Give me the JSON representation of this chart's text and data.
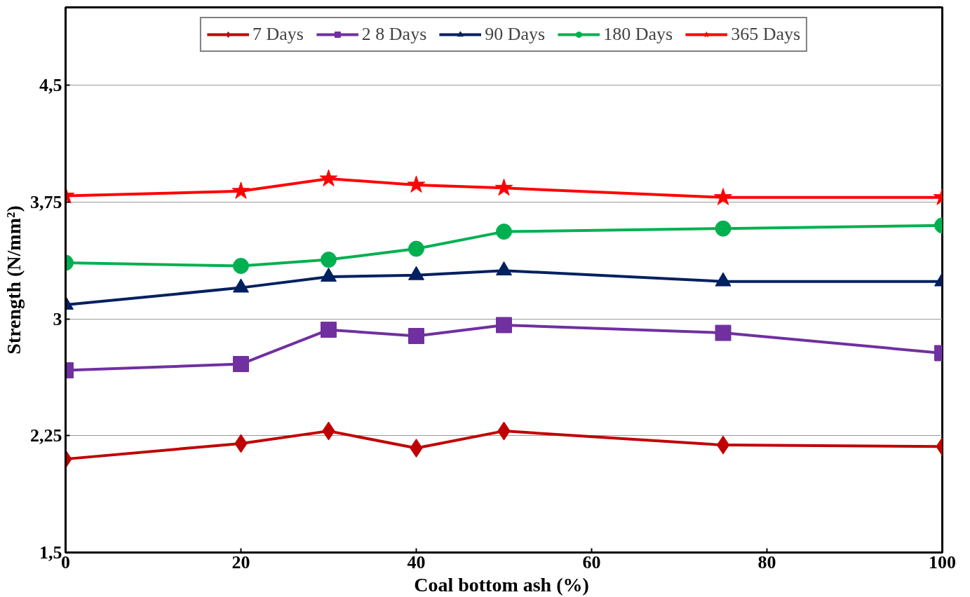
{
  "chart_data": {
    "type": "line",
    "xlabel": "Coal bottom ash  (%)",
    "ylabel": "Strength (N/mm²)",
    "x": [
      0,
      20,
      30,
      40,
      50,
      75,
      100
    ],
    "xlim": [
      0,
      100
    ],
    "xticks": [
      0,
      20,
      40,
      60,
      80,
      100
    ],
    "ylim": [
      1.5,
      5
    ],
    "yticks": [
      {
        "value": 1.5,
        "label": "1,5"
      },
      {
        "value": 2.25,
        "label": "2,25"
      },
      3,
      {
        "value": 3.75,
        "label": "3,75"
      },
      {
        "value": 4.5,
        "label": "4,5"
      }
    ],
    "grid": "y",
    "legend": "top",
    "line_style": "solid",
    "series": [
      {
        "name": "7 Days",
        "color": "#c00000",
        "marker": "diamond",
        "values": [
          2.1,
          2.2,
          2.28,
          2.17,
          2.28,
          2.19,
          2.18
        ]
      },
      {
        "name": "2 8 Days",
        "color": "#7030a0",
        "marker": "square",
        "values": [
          2.67,
          2.71,
          2.93,
          2.89,
          2.96,
          2.91,
          2.78
        ]
      },
      {
        "name": "90 Days",
        "color": "#002060",
        "marker": "triangle",
        "values": [
          3.09,
          3.2,
          3.27,
          3.28,
          3.31,
          3.24,
          3.24
        ]
      },
      {
        "name": "180 Days",
        "color": "#00b050",
        "marker": "circle",
        "values": [
          3.36,
          3.34,
          3.38,
          3.45,
          3.56,
          3.58,
          3.6
        ]
      },
      {
        "name": "365 Days",
        "color": "#ff0000",
        "marker": "star",
        "values": [
          3.79,
          3.82,
          3.9,
          3.86,
          3.84,
          3.78,
          3.78
        ]
      }
    ]
  }
}
